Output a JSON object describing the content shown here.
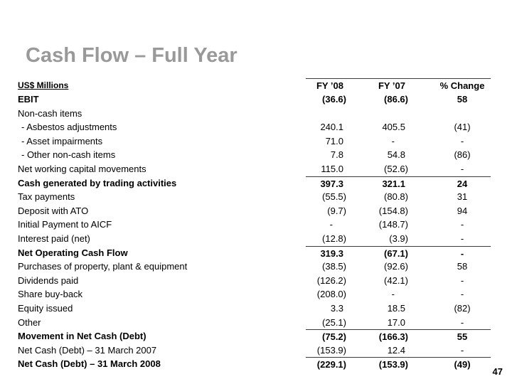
{
  "title": "Cash Flow – Full Year",
  "page_number": "47",
  "colors": {
    "title": "#999999",
    "text": "#000000",
    "line": "#3a3a3a"
  },
  "table": {
    "unit_label": "US$ Millions",
    "columns": [
      "FY ’08",
      "FY ’07",
      "% Change"
    ],
    "rows": [
      {
        "label": "EBIT",
        "fy08": "(36.6)",
        "fy07": "(86.6)",
        "change": "58",
        "bold": true
      },
      {
        "label": "Non-cash items",
        "fy08": "",
        "fy07": "",
        "change": ""
      },
      {
        "label": "- Asbestos adjustments",
        "indent": true,
        "fy08": "240.1",
        "fy07": "405.5",
        "change": "(41)"
      },
      {
        "label": "- Asset impairments",
        "indent": true,
        "fy08": "71.0",
        "fy07": "-",
        "change": "-"
      },
      {
        "label": "- Other non-cash items",
        "indent": true,
        "fy08": "7.8",
        "fy07": "54.8",
        "change": "(86)"
      },
      {
        "label": "Net working capital movements",
        "fy08": "115.0",
        "fy07": "(52.6)",
        "change": "-"
      },
      {
        "label": "Cash generated by trading activities",
        "fy08": "397.3",
        "fy07": "321.1",
        "change": "24",
        "bold": true,
        "line_above": true
      },
      {
        "label": "Tax payments",
        "fy08": "(55.5)",
        "fy07": "(80.8)",
        "change": "31"
      },
      {
        "label": "Deposit with ATO",
        "fy08": "(9.7)",
        "fy07": "(154.8)",
        "change": "94"
      },
      {
        "label": "Initial Payment to AICF",
        "fy08": "-",
        "fy07": "(148.7)",
        "change": "-"
      },
      {
        "label": "Interest paid (net)",
        "fy08": "(12.8)",
        "fy07": "(3.9)",
        "change": "-"
      },
      {
        "label": "Net Operating Cash Flow",
        "fy08": "319.3",
        "fy07": "(67.1)",
        "change": "-",
        "bold": true,
        "line_above": true
      },
      {
        "label": "Purchases of property, plant & equipment",
        "fy08": "(38.5)",
        "fy07": "(92.6)",
        "change": "58"
      },
      {
        "label": "Dividends paid",
        "fy08": "(126.2)",
        "fy07": "(42.1)",
        "change": "-"
      },
      {
        "label": "Share buy-back",
        "fy08": "(208.0)",
        "fy07": "-",
        "change": "-"
      },
      {
        "label": "Equity issued",
        "fy08": "3.3",
        "fy07": "18.5",
        "change": "(82)"
      },
      {
        "label": "Other",
        "fy08": "(25.1)",
        "fy07": "17.0",
        "change": "-"
      },
      {
        "label": "Movement in Net Cash (Debt)",
        "fy08": "(75.2)",
        "fy07": "(166.3)",
        "change": "55",
        "bold": true,
        "line_above": true
      },
      {
        "label": "Net Cash (Debt) – 31 March 2007",
        "fy08": "(153.9)",
        "fy07": "12.4",
        "change": "-"
      },
      {
        "label": "Net Cash (Debt) – 31 March 2008",
        "fy08": "(229.1)",
        "fy07": "(153.9)",
        "change": "(49)",
        "bold": true,
        "line_above": true
      }
    ]
  }
}
